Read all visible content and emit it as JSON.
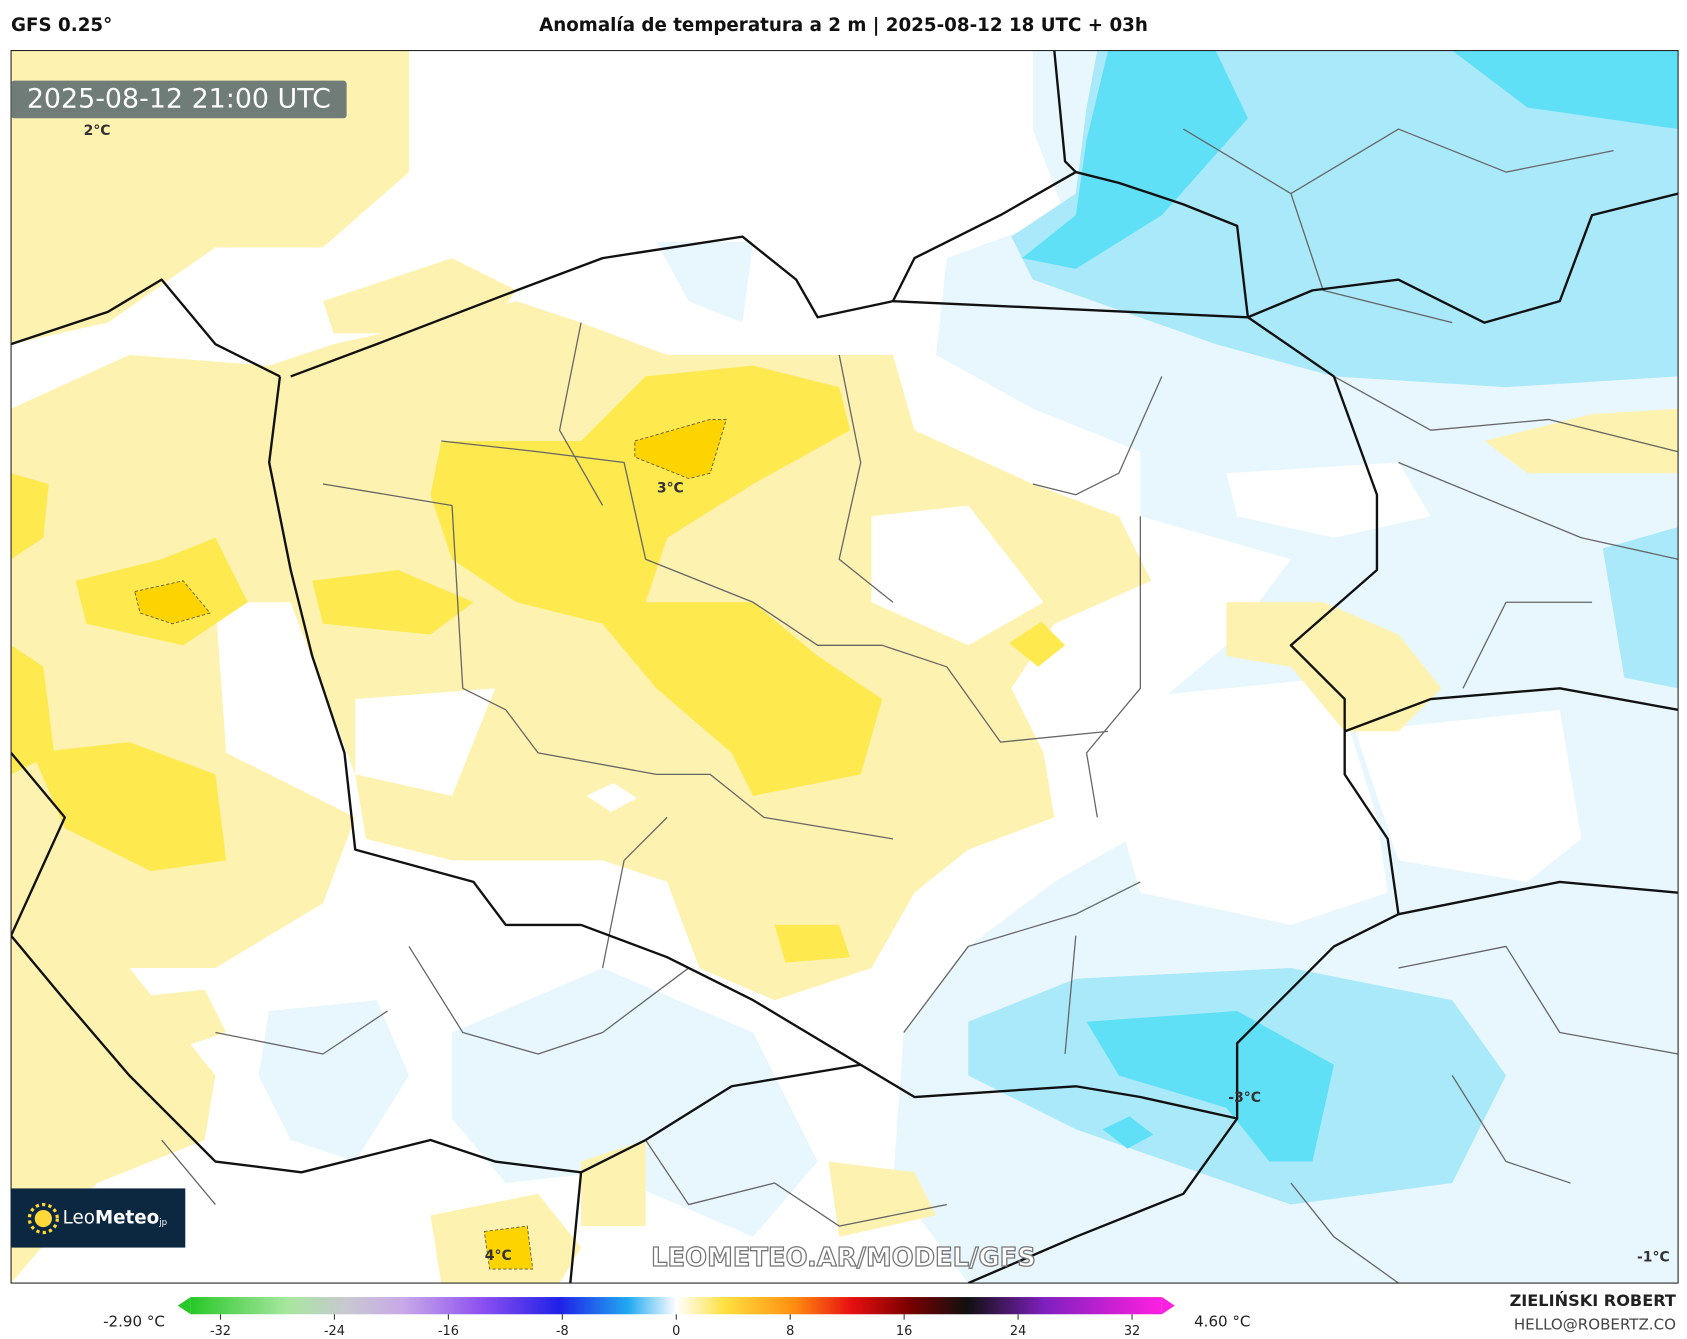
{
  "header": {
    "model": "GFS 0.25°",
    "title": "Anomalía de temperatura a 2 m | 2025-08-12 18 UTC + 03h"
  },
  "map": {
    "timestamp": "2025-08-12 21:00 UTC",
    "contour_labels": [
      "2°C",
      "3°C",
      "-3°C",
      "4°C",
      "-1°C"
    ],
    "watermark": "LEOMETEO.AR/MODEL/GFS",
    "logo": {
      "name": "Leo",
      "name_bold": "Meteo",
      "suffix": "jp"
    }
  },
  "colorbar": {
    "min_label": "-2.90 °C",
    "max_label": "4.60 °C",
    "lim": [
      -35,
      35
    ],
    "ticks": [
      -32,
      -24,
      -16,
      -8,
      0,
      8,
      16,
      24,
      32
    ]
  },
  "credit": {
    "author": "ZIELIŃSKI ROBERT",
    "email": "HELLO@ROBERTZ.CO"
  }
}
